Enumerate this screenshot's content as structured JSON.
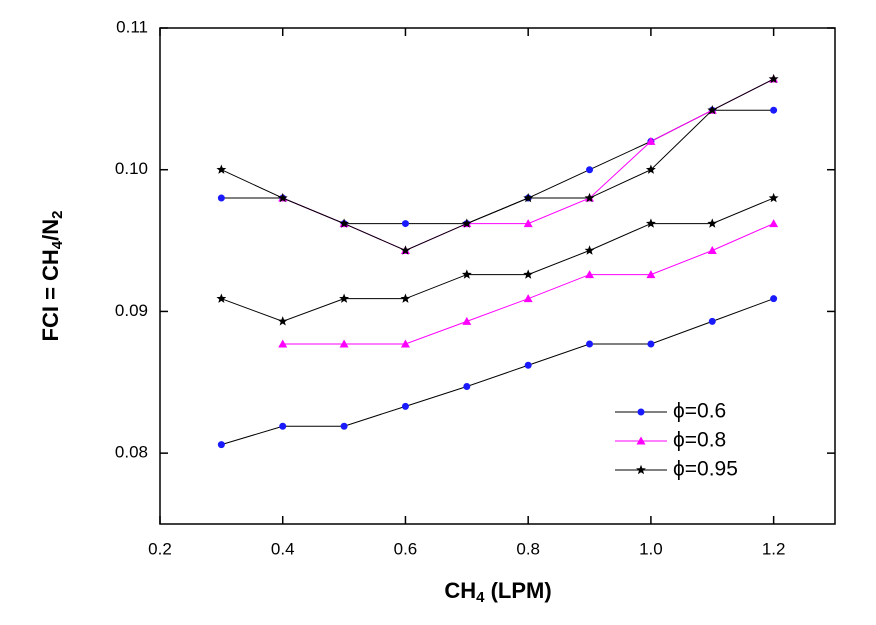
{
  "chart_data": {
    "type": "line",
    "x_label": [
      "CH",
      "4",
      " (LPM)"
    ],
    "y_label": [
      "FCI = CH",
      "4",
      "/N",
      "2"
    ],
    "x": [
      0.3,
      0.4,
      0.5,
      0.6,
      0.7,
      0.8,
      0.9,
      1.0,
      1.1,
      1.2
    ],
    "series": [
      {
        "name": "ϕ=0.6",
        "marker": "circle",
        "color": "#1a1aff",
        "line_color": "#000000",
        "values": [
          0.0806,
          0.0819,
          0.0819,
          0.0833,
          0.0847,
          0.0862,
          0.0877,
          0.0877,
          0.0893,
          0.0909
        ],
        "upper_values": [
          0.098,
          0.098,
          0.0962,
          0.0962,
          0.0962,
          0.098,
          0.1,
          0.102,
          0.1042,
          0.1042
        ]
      },
      {
        "name": "ϕ=0.8",
        "marker": "triangle",
        "color": "#ff00ff",
        "line_color": "#ff00ff",
        "values": [
          null,
          0.0877,
          0.0877,
          0.0877,
          0.0893,
          0.0909,
          0.0926,
          0.0926,
          0.0943,
          0.0962
        ],
        "upper_values": [
          null,
          0.098,
          0.0962,
          0.0943,
          0.0962,
          0.0962,
          0.098,
          0.102,
          0.1042,
          0.1064
        ]
      },
      {
        "name": "ϕ=0.95",
        "marker": "star",
        "color": "#000000",
        "line_color": "#000000",
        "values": [
          0.0909,
          0.0893,
          0.0909,
          0.0909,
          0.0926,
          0.0926,
          0.0943,
          0.0962,
          0.0962,
          0.098
        ],
        "upper_values": [
          0.1,
          0.098,
          0.0962,
          0.0943,
          0.0962,
          0.098,
          0.098,
          0.1,
          0.1042,
          0.1064
        ]
      }
    ],
    "xlim": [
      0.2,
      1.3
    ],
    "ylim": [
      0.075,
      0.11
    ],
    "xticks": [
      0.2,
      0.4,
      0.6,
      0.8,
      {
        "value": 1,
        "label": "1.0"
      },
      1.2
    ],
    "yticks": [
      0.08,
      0.09,
      {
        "value": 0.1,
        "label": "0.10"
      },
      0.11
    ],
    "legend": "lower-right"
  }
}
